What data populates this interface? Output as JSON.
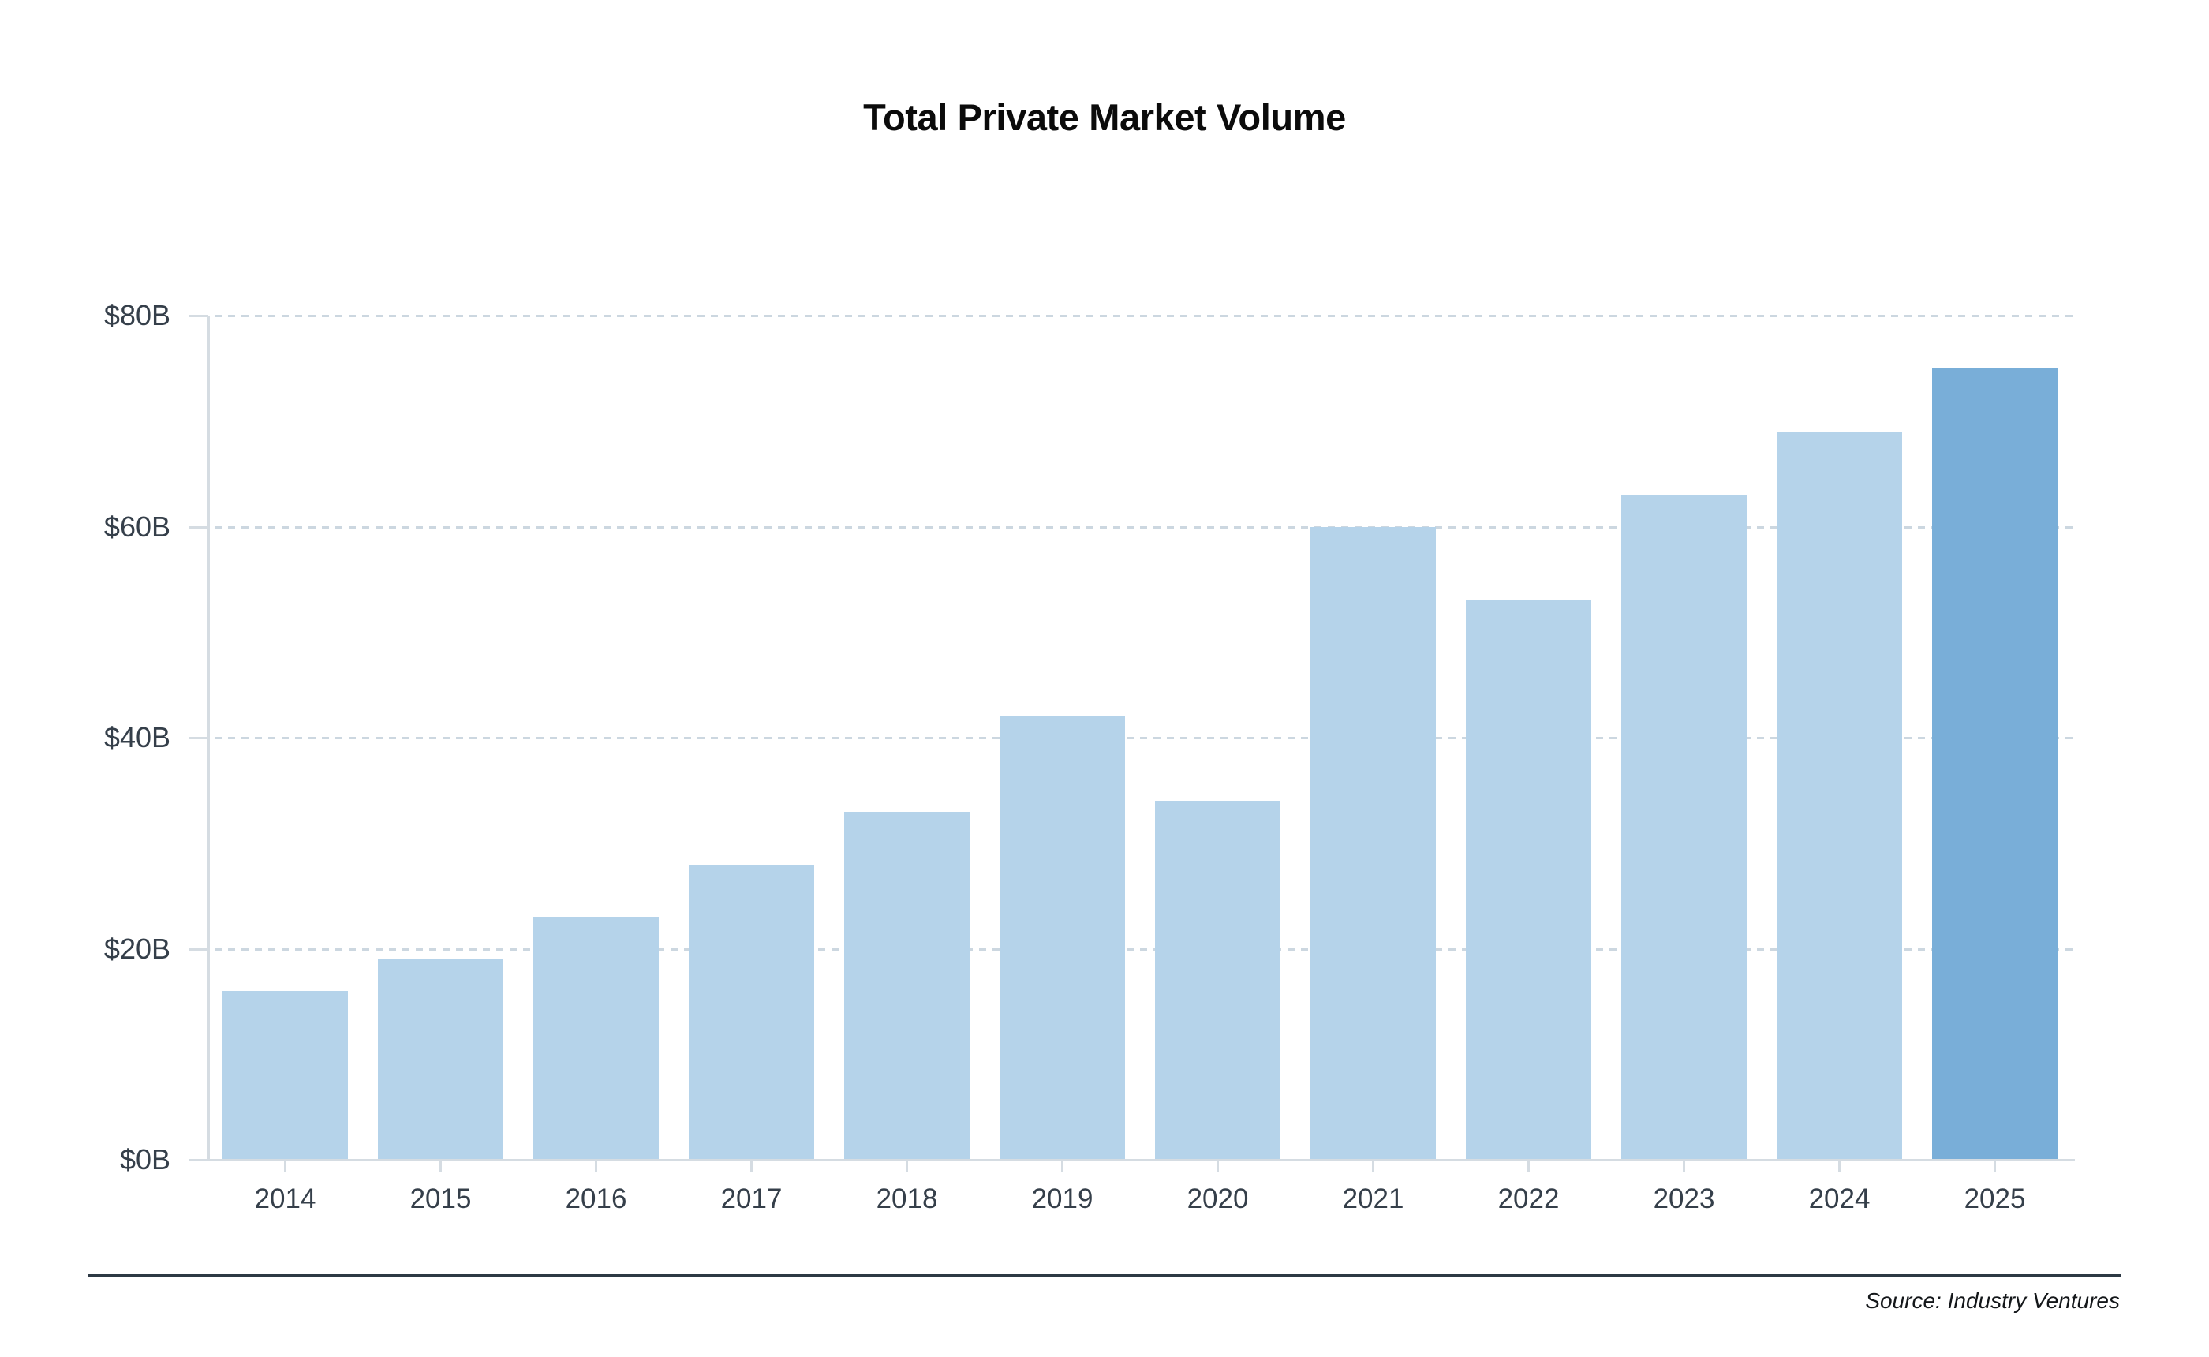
{
  "title": "Total Private Market Volume",
  "footer": {
    "source": "Source: Industry Ventures"
  },
  "chart_data": {
    "type": "bar",
    "title": "Total Private Market Volume",
    "categories": [
      "2014",
      "2015",
      "2016",
      "2017",
      "2018",
      "2019",
      "2020",
      "2021",
      "2022",
      "2023",
      "2024",
      "2025"
    ],
    "values": [
      16,
      19,
      23,
      28,
      33,
      42,
      34,
      60,
      53,
      63,
      69,
      75
    ],
    "unit": "USD billions",
    "xlabel": "",
    "ylabel": "",
    "ylim": [
      0,
      80
    ],
    "y_ticks": [
      0,
      20,
      40,
      60,
      80
    ],
    "y_tick_labels": [
      "$0B",
      "$20B",
      "$40B",
      "$60B",
      "$80B"
    ],
    "grid": "horizontal-dashed",
    "legend": "none",
    "colors": {
      "bar": "#b5d3ea",
      "highlight_bar": "#79aed8",
      "highlight_category": "2025",
      "axis": "#d5dce2",
      "tick_text": "#353f4a"
    }
  }
}
